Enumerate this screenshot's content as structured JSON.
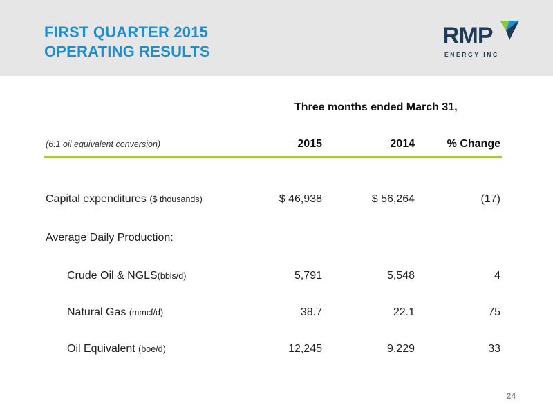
{
  "slide": {
    "title_line1": "FIRST QUARTER 2015",
    "title_line2": "OPERATING RESULTS",
    "page_number": "24"
  },
  "logo": {
    "word": "RMP",
    "tagline": "ENERGY INC",
    "icon": "rmp-v-mark-icon",
    "colors": {
      "navy": "#1f3b57",
      "green": "#8cc63f",
      "blue": "#1a8fd6"
    }
  },
  "table": {
    "group_header": "Three  months ended March 31,",
    "note": "(6:1 oil equivalent conversion)",
    "columns": [
      "2015",
      "2014",
      "% Change"
    ],
    "rows": [
      {
        "label": "Capital expenditures",
        "unit": "($ thousands)",
        "values": [
          "$ 46,938",
          "$ 56,264",
          "(17)"
        ]
      },
      {
        "label": "Average Daily Production:",
        "unit": "",
        "values": [
          "",
          "",
          ""
        ]
      },
      {
        "label": "Crude Oil & NGLS",
        "unit": "(bbls/d)",
        "values": [
          "5,791",
          "5,548",
          "4"
        ]
      },
      {
        "label": "Natural Gas",
        "unit": "(mmcf/d)",
        "values": [
          "38.7",
          "22.1",
          "75"
        ]
      },
      {
        "label": "Oil Equivalent",
        "unit": "(boe/d)",
        "values": [
          "12,245",
          "9,229",
          "33"
        ]
      }
    ]
  },
  "colors": {
    "title_blue": "#1a8fd6",
    "rule_green": "#a6c83c",
    "header_bg": "#e6e6e6"
  }
}
